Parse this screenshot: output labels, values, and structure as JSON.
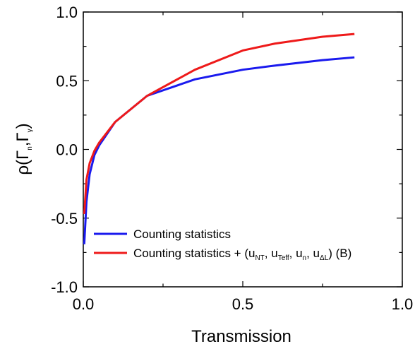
{
  "chart_data": {
    "type": "line",
    "xlabel": "Transmission",
    "ylabel": "ρ(Γn,Γγ)",
    "ylabel_parts": {
      "rho": "ρ(Γ",
      "n": "n",
      "sep": ",Γ",
      "gamma": "γ",
      "close": ")"
    },
    "xlim": [
      0.0,
      1.0
    ],
    "ylim": [
      -1.0,
      1.0
    ],
    "x_ticks": [
      "0.0",
      "0.5",
      "1.0"
    ],
    "y_ticks": [
      "-1.0",
      "-0.5",
      "0.0",
      "0.5",
      "1.0"
    ],
    "grid": false,
    "legend_position": "bottom-left",
    "series": [
      {
        "name": "Counting statistics",
        "color": "#1a1aee",
        "x": [
          0.003,
          0.01,
          0.02,
          0.035,
          0.05,
          0.1,
          0.2,
          0.35,
          0.5,
          0.6,
          0.75,
          0.85
        ],
        "y": [
          -0.69,
          -0.38,
          -0.18,
          -0.04,
          0.03,
          0.2,
          0.39,
          0.51,
          0.58,
          0.61,
          0.65,
          0.67
        ]
      },
      {
        "name": "Counting statistics + (uNT, uTeff, un, uΔL) (B)",
        "color": "#ee1a1a",
        "x": [
          0.003,
          0.01,
          0.02,
          0.035,
          0.05,
          0.1,
          0.2,
          0.35,
          0.5,
          0.6,
          0.75,
          0.85
        ],
        "y": [
          -0.47,
          -0.22,
          -0.1,
          -0.01,
          0.05,
          0.2,
          0.39,
          0.58,
          0.72,
          0.77,
          0.82,
          0.84
        ]
      }
    ],
    "legend_parts": {
      "prefix": "Counting statistics + (u",
      "s1": "NT",
      "t1": ", u",
      "s2": "Teff",
      "t2": ", u",
      "s3": "n",
      "t3": ", u",
      "s4": "ΔL",
      "suffix": ") (B)"
    }
  }
}
